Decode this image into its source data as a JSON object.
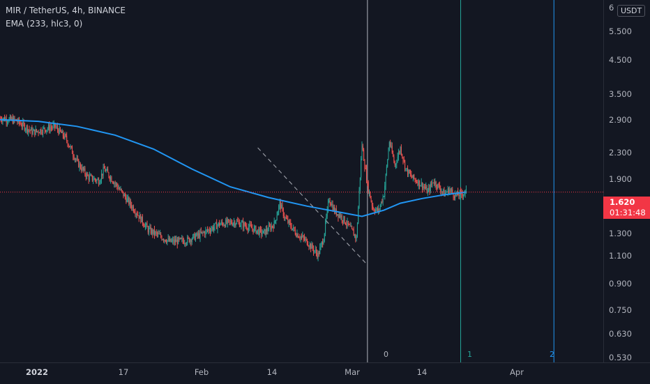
{
  "header": {
    "symbol_line": "MIR / TetherUS, 4h, BINANCE",
    "indicator_line": "EMA (233, hlc3, 0)"
  },
  "price_axis": {
    "currency_label": "USDT",
    "top_partial_label": "6",
    "ticks": [
      "5.500",
      "4.500",
      "3.500",
      "2.900",
      "2.300",
      "1.900",
      "1.300",
      "1.100",
      "0.900",
      "0.750",
      "0.630",
      "0.530"
    ]
  },
  "last_price": {
    "price": "1.620",
    "countdown": "01:31:48"
  },
  "time_axis": {
    "ticks": [
      "2022",
      "17",
      "Feb",
      "14",
      "Mar",
      "14",
      "Apr"
    ]
  },
  "vertical_markers": [
    "0",
    "1",
    "2"
  ],
  "colors": {
    "background": "#131722",
    "up": "#26a69a",
    "down": "#ef5350",
    "ema": "#2196f3",
    "last_price": "#f23645",
    "marker_0": "#b2b5be",
    "marker_1": "#26a69a",
    "marker_2": "#2196f3"
  },
  "chart_data": {
    "type": "line",
    "title": "MIR / TetherUS, 4h, BINANCE",
    "y_scale": "log",
    "ylim": [
      0.5,
      6.1
    ],
    "xlim": [
      "2021-12-27",
      "2022-04-16"
    ],
    "grid": false,
    "series": [
      {
        "name": "",
        "style": "candlestick-close",
        "x": [
          "2021-12-27",
          "2021-12-30",
          "2022-01-02",
          "2022-01-04",
          "2022-01-06",
          "2022-01-08",
          "2022-01-10",
          "2022-01-12",
          "2022-01-14",
          "2022-01-15",
          "2022-01-17",
          "2022-01-19",
          "2022-01-21",
          "2022-01-23",
          "2022-01-25",
          "2022-01-27",
          "2022-01-30",
          "2022-02-02",
          "2022-02-05",
          "2022-02-08",
          "2022-02-10",
          "2022-02-13",
          "2022-02-15",
          "2022-02-16",
          "2022-02-17",
          "2022-02-19",
          "2022-02-21",
          "2022-02-23",
          "2022-02-24",
          "2022-02-25",
          "2022-02-26",
          "2022-02-27",
          "2022-02-28",
          "2022-03-01",
          "2022-03-02",
          "2022-03-03",
          "2022-03-04",
          "2022-03-05",
          "2022-03-06",
          "2022-03-07",
          "2022-03-08",
          "2022-03-09",
          "2022-03-10",
          "2022-03-11",
          "2022-03-12",
          "2022-03-13",
          "2022-03-14",
          "2022-03-15",
          "2022-03-16",
          "2022-03-17",
          "2022-03-18",
          "2022-03-19",
          "2022-03-20",
          "2022-03-21",
          "2022-03-22"
        ],
        "values": [
          2.7,
          2.65,
          2.45,
          2.5,
          2.55,
          2.35,
          2.0,
          1.8,
          1.75,
          1.9,
          1.72,
          1.55,
          1.4,
          1.25,
          1.2,
          1.15,
          1.16,
          1.22,
          1.3,
          1.32,
          1.28,
          1.22,
          1.3,
          1.5,
          1.35,
          1.22,
          1.15,
          1.05,
          1.18,
          1.55,
          1.42,
          1.38,
          1.32,
          1.25,
          1.18,
          2.25,
          1.7,
          1.45,
          1.42,
          1.6,
          2.3,
          1.95,
          2.2,
          1.9,
          1.8,
          1.75,
          1.7,
          1.62,
          1.75,
          1.68,
          1.6,
          1.65,
          1.58,
          1.6,
          1.62
        ]
      },
      {
        "name": "",
        "style": "ema",
        "x": [
          "2021-12-27",
          "2022-01-03",
          "2022-01-10",
          "2022-01-17",
          "2022-01-24",
          "2022-01-31",
          "2022-02-07",
          "2022-02-14",
          "2022-02-21",
          "2022-02-28",
          "2022-03-03",
          "2022-03-07",
          "2022-03-10",
          "2022-03-14",
          "2022-03-18",
          "2022-03-22"
        ],
        "values": [
          2.67,
          2.64,
          2.55,
          2.4,
          2.18,
          1.9,
          1.68,
          1.56,
          1.47,
          1.4,
          1.37,
          1.43,
          1.5,
          1.55,
          1.59,
          1.62
        ]
      }
    ],
    "trendline": {
      "x": [
        "2022-02-12",
        "2022-03-04"
      ],
      "y": [
        2.2,
        0.98
      ],
      "style": "dashed"
    },
    "vertical_lines": [
      {
        "label": "0",
        "x": "2022-03-04"
      },
      {
        "label": "1",
        "x": "2022-03-21"
      },
      {
        "label": "2",
        "x": "2022-04-07"
      }
    ]
  }
}
